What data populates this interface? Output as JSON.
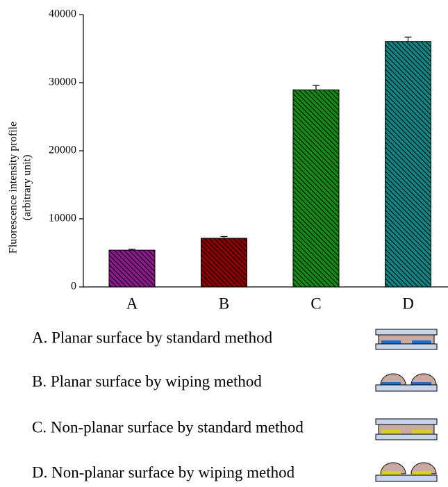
{
  "chart_data": {
    "type": "bar",
    "y_label": [
      "Fluorescence intensity profile",
      "(arbitrary unit)"
    ],
    "categories": [
      "A",
      "B",
      "C",
      "D"
    ],
    "values": [
      5400,
      7150,
      28950,
      36050
    ],
    "errors": [
      150,
      250,
      650,
      650
    ],
    "colors": [
      "#8b1a8b",
      "#8b0000",
      "#138a13",
      "#118383"
    ],
    "ylim": [
      0,
      40000
    ],
    "yticks": [
      0,
      10000,
      20000,
      30000,
      40000
    ]
  },
  "legend_items": [
    "A. Planar surface by standard method",
    "B. Planar surface by wiping method",
    "C. Non-planar surface by standard method",
    "D. Non-planar surface by wiping method"
  ]
}
